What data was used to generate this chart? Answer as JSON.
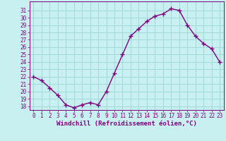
{
  "x": [
    0,
    1,
    2,
    3,
    4,
    5,
    6,
    7,
    8,
    9,
    10,
    11,
    12,
    13,
    14,
    15,
    16,
    17,
    18,
    19,
    20,
    21,
    22,
    23
  ],
  "y": [
    22,
    21.5,
    20.5,
    19.5,
    18.2,
    17.8,
    18.2,
    18.5,
    18.2,
    20.0,
    22.5,
    25.0,
    27.5,
    28.5,
    29.5,
    30.2,
    30.5,
    31.2,
    31.0,
    29.0,
    27.5,
    26.5,
    25.8,
    24.0
  ],
  "line_color": "#800080",
  "marker": "+",
  "marker_size": 4,
  "marker_lw": 1.0,
  "line_width": 1.0,
  "bg_color": "#c8f0f0",
  "grid_color": "#a0d8d8",
  "xlabel": "Windchill (Refroidissement éolien,°C)",
  "xlabel_fontsize": 6.5,
  "tick_fontsize": 5.5,
  "ylim": [
    17.5,
    32.2
  ],
  "xlim": [
    -0.5,
    23.5
  ],
  "yticks": [
    18,
    19,
    20,
    21,
    22,
    23,
    24,
    25,
    26,
    27,
    28,
    29,
    30,
    31
  ],
  "xticks": [
    0,
    1,
    2,
    3,
    4,
    5,
    6,
    7,
    8,
    9,
    10,
    11,
    12,
    13,
    14,
    15,
    16,
    17,
    18,
    19,
    20,
    21,
    22,
    23
  ]
}
